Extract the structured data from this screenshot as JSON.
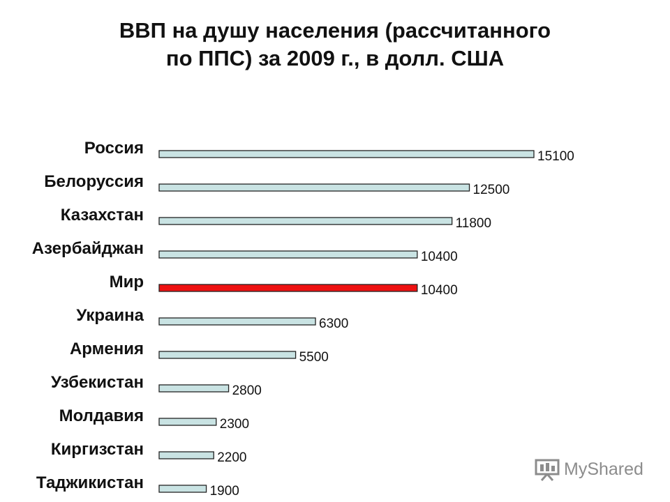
{
  "title_line1": "ВВП на душу населения (рассчитанного",
  "title_line2": "по ППС) за 2009 г., в долл. США",
  "watermark": "MyShared",
  "colors": {
    "bar_fill": "#c9e3e3",
    "bar_highlight": "#ee1111",
    "bar_stroke": "#222222",
    "text": "#111111"
  },
  "chart_data": {
    "type": "bar",
    "orientation": "horizontal",
    "title": "ВВП на душу населения (рассчитанного по ППС) за 2009 г., в долл. США",
    "xlabel": "",
    "ylabel": "",
    "grid": false,
    "legend": "none",
    "xlim": [
      0,
      15100
    ],
    "categories": [
      "Россия",
      "Белоруссия",
      "Казахстан",
      "Азербайджан",
      "Мир",
      "Украина",
      "Армения",
      "Узбекистан",
      "Молдавия",
      "Киргизстан",
      "Таджикистан"
    ],
    "values": [
      15100,
      12500,
      11800,
      10400,
      10400,
      6300,
      5500,
      2800,
      2300,
      2200,
      1900
    ],
    "value_labels": [
      "15100",
      "12500",
      "11800",
      "10400",
      "10400",
      "6300",
      "5500",
      "2800",
      "2300",
      "2200",
      "1900"
    ],
    "highlighted_category": "Мир"
  }
}
